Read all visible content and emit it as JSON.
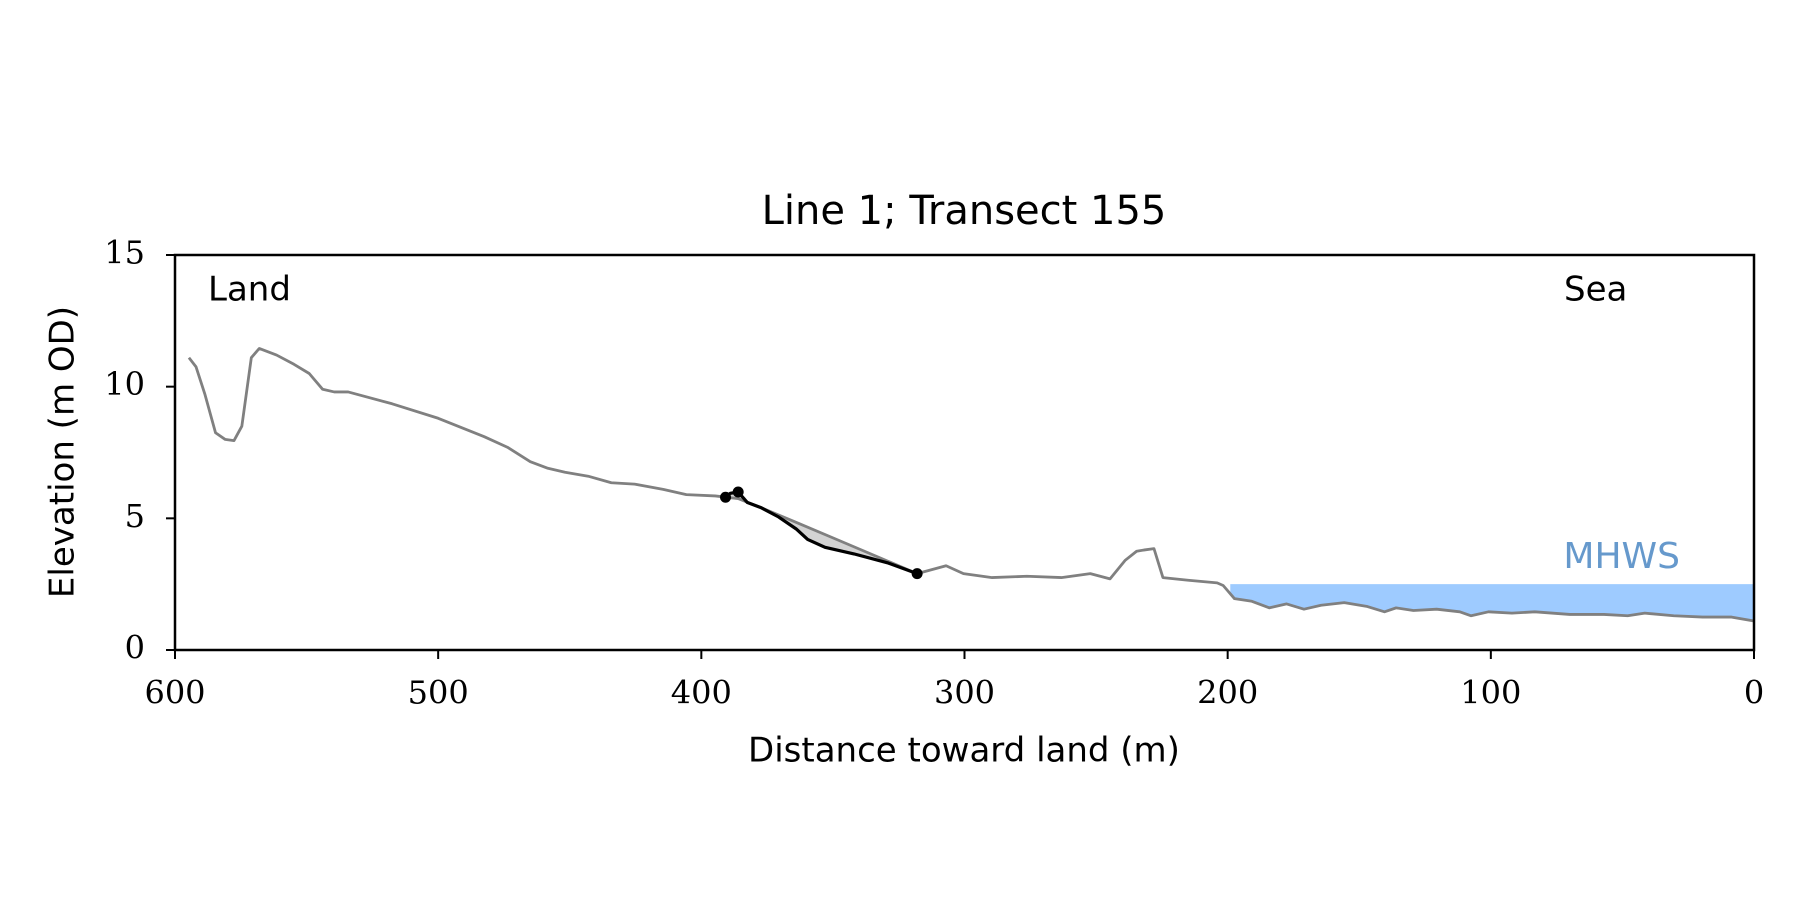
{
  "chart_data": {
    "type": "line",
    "title": "Line 1; Transect 155",
    "x_label": "Distance toward land (m)",
    "y_label": "Elevation (m OD)",
    "annotations": [
      "Land",
      "Sea"
    ],
    "xlim": [
      600,
      0
    ],
    "ylim": [
      0,
      15
    ],
    "xticks": [
      600,
      500,
      400,
      300,
      200,
      100,
      0
    ],
    "yticks": [
      0,
      5,
      10,
      15
    ],
    "shade_color": "#d3d3d3",
    "mhws": {
      "label": "MHWS",
      "level": 2.5,
      "x_start": 199,
      "color": "#9ecbff",
      "label_color": "#6699cc"
    },
    "series": [
      {
        "type": "line",
        "color": "#808080",
        "x": [
          594.7,
          592,
          588.6,
          584.6,
          581,
          577.6,
          574.6,
          571,
          568,
          561.4,
          554.8,
          549,
          543.9,
          539.5,
          534.2,
          517.5,
          500,
          482.5,
          473.7,
          465,
          458.3,
          451.8,
          443,
          434.2,
          425.4,
          414.5,
          405.7,
          394.7,
          386,
          377.2,
          364,
          351,
          333.3,
          318,
          307,
          300.4,
          289.5,
          276.3,
          263.2,
          252.2,
          244.7,
          239,
          234.6,
          231.6,
          228,
          224.6,
          215,
          204,
          201.7,
          197.4,
          190.8,
          184.2,
          177.6,
          171,
          164.5,
          155.7,
          146.9,
          140.4,
          136,
          129.4,
          120.6,
          111.8,
          107.5,
          100.9,
          92,
          83.3,
          70,
          57,
          48,
          41.5,
          30.5,
          19.5,
          8.5,
          0
        ],
        "values": [
          11.1,
          10.75,
          9.7,
          8.25,
          8.0,
          7.95,
          8.5,
          11.1,
          11.45,
          11.2,
          10.85,
          10.5,
          9.9,
          9.8,
          9.8,
          9.35,
          8.8,
          8.1,
          7.7,
          7.15,
          6.9,
          6.75,
          6.6,
          6.35,
          6.3,
          6.1,
          5.9,
          5.85,
          5.75,
          5.4,
          4.85,
          4.3,
          3.55,
          2.9,
          3.2,
          2.9,
          2.75,
          2.8,
          2.75,
          2.9,
          2.7,
          3.4,
          3.75,
          3.8,
          3.85,
          2.75,
          2.65,
          2.55,
          2.45,
          1.95,
          1.85,
          1.6,
          1.75,
          1.55,
          1.7,
          1.8,
          1.65,
          1.45,
          1.6,
          1.5,
          1.55,
          1.45,
          1.3,
          1.45,
          1.4,
          1.45,
          1.35,
          1.35,
          1.3,
          1.4,
          1.3,
          1.25,
          1.25,
          1.1
        ]
      },
      {
        "type": "line",
        "color": "#000000",
        "x": [
          390.8,
          389,
          386,
          382.5,
          377.2,
          370.6,
          364,
          359.6,
          353,
          342,
          328.9,
          318
        ],
        "values": [
          5.8,
          5.95,
          6.0,
          5.6,
          5.4,
          5.05,
          4.6,
          4.2,
          3.9,
          3.65,
          3.3,
          2.9
        ]
      },
      {
        "type": "scatter",
        "color": "#000000",
        "x": [
          390.8,
          386,
          318
        ],
        "values": [
          5.8,
          6.0,
          2.9
        ]
      }
    ]
  }
}
